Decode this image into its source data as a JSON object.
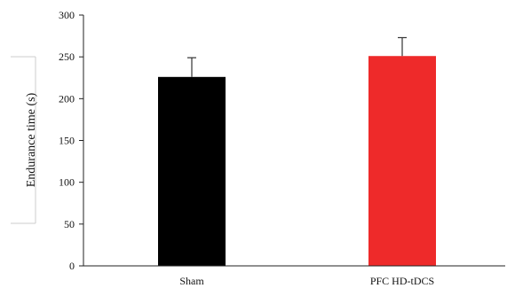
{
  "chart_data": {
    "type": "bar",
    "categories": [
      "Sham",
      "PFC HD-tDCS"
    ],
    "values": [
      226,
      251
    ],
    "errors": [
      23,
      22
    ],
    "colors": [
      "#000000",
      "#ee2a2a"
    ],
    "xlabel": "",
    "ylabel": "Endurance time (s)",
    "ylim": [
      0,
      300
    ],
    "yticks": [
      0,
      50,
      100,
      150,
      200,
      250,
      300
    ],
    "ytick_labels": [
      "0",
      "50",
      "100",
      "150",
      "200",
      "250",
      "300"
    ],
    "grid": false,
    "legend": "none"
  }
}
